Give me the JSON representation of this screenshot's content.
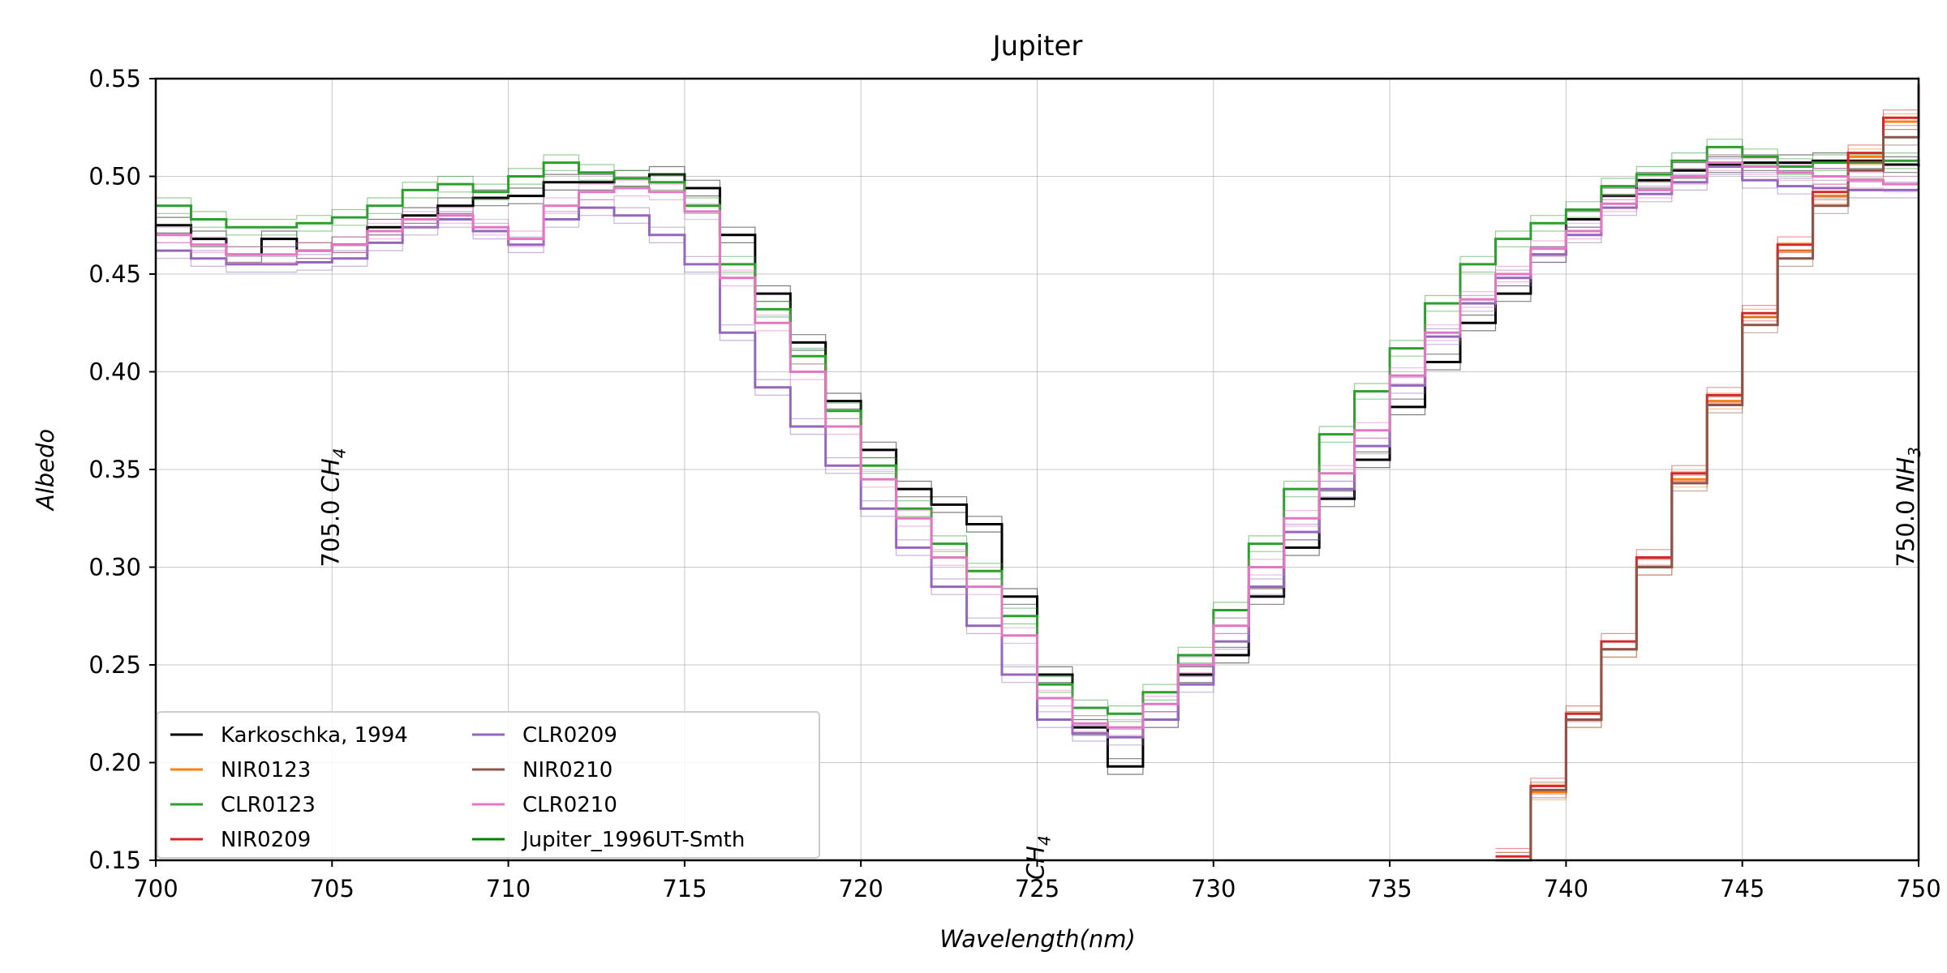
{
  "chart_data": {
    "type": "line",
    "title": "Jupiter",
    "xlabel_parts": [
      "Wavelength",
      "(nm)"
    ],
    "ylabel": "Albedo",
    "xlim": [
      700,
      750
    ],
    "ylim": [
      0.15,
      0.55
    ],
    "xticks": [
      "700",
      "705",
      "710",
      "715",
      "720",
      "725",
      "730",
      "735",
      "740",
      "745",
      "750"
    ],
    "yticks": [
      "0.15",
      "0.20",
      "0.25",
      "0.30",
      "0.35",
      "0.40",
      "0.45",
      "0.50",
      "0.55"
    ],
    "grid": true,
    "legend_position": "lower-left",
    "legend_columns": 2,
    "annotations": [
      {
        "x": 705.0,
        "y": 0.3,
        "value": "705.0",
        "species": "CH",
        "subscript": "4",
        "rotation": "vertical"
      },
      {
        "x": 750.0,
        "y": 0.3,
        "value": "750.0",
        "species": "NH",
        "subscript": "3",
        "rotation": "vertical"
      },
      {
        "x": 725.0,
        "y": 0.14,
        "value": "",
        "species": "CH",
        "subscript": "4",
        "rotation": "vertical"
      }
    ],
    "series": [
      {
        "name": "Karkoschka, 1994",
        "color": "#000000",
        "x": [
          700,
          701,
          702,
          703,
          704,
          705,
          706,
          707,
          708,
          709,
          710,
          711,
          712,
          713,
          714,
          715,
          716,
          717,
          718,
          719,
          720,
          721,
          722,
          723,
          724,
          725,
          726,
          727,
          728,
          729,
          730,
          731,
          732,
          733,
          734,
          735,
          736,
          737,
          738,
          739,
          740,
          741,
          742,
          743,
          744,
          745,
          746,
          747,
          748,
          749,
          750
        ],
        "y": [
          0.475,
          0.468,
          0.46,
          0.468,
          0.462,
          0.465,
          0.474,
          0.48,
          0.485,
          0.489,
          0.49,
          0.497,
          0.497,
          0.499,
          0.501,
          0.494,
          0.47,
          0.44,
          0.415,
          0.385,
          0.36,
          0.34,
          0.332,
          0.322,
          0.285,
          0.245,
          0.218,
          0.198,
          0.222,
          0.245,
          0.255,
          0.285,
          0.31,
          0.335,
          0.355,
          0.382,
          0.405,
          0.425,
          0.44,
          0.46,
          0.478,
          0.49,
          0.498,
          0.503,
          0.506,
          0.507,
          0.507,
          0.508,
          0.508,
          0.506,
          0.505
        ]
      },
      {
        "name": "NIR0123",
        "color": "#ff7f0e",
        "x": [
          738,
          739,
          740,
          741,
          742,
          743,
          744,
          745,
          746,
          747,
          748,
          749,
          750
        ],
        "y": [
          0.15,
          0.185,
          0.222,
          0.258,
          0.3,
          0.345,
          0.385,
          0.428,
          0.462,
          0.49,
          0.51,
          0.528,
          0.545
        ]
      },
      {
        "name": "CLR0123",
        "color": "#2ca02c",
        "x": [
          700,
          701,
          702,
          703,
          704,
          705,
          706,
          707,
          708,
          709,
          710,
          711,
          712,
          713,
          714,
          715,
          716,
          717,
          718,
          719,
          720,
          721,
          722,
          723,
          724,
          725,
          726,
          727,
          728,
          729,
          730,
          731,
          732,
          733,
          734,
          735,
          736,
          737,
          738,
          739,
          740,
          741,
          742,
          743,
          744,
          745,
          746,
          747,
          748,
          749,
          750
        ],
        "y": [
          0.485,
          0.478,
          0.474,
          0.474,
          0.476,
          0.479,
          0.485,
          0.493,
          0.496,
          0.492,
          0.5,
          0.507,
          0.502,
          0.499,
          0.497,
          0.485,
          0.455,
          0.432,
          0.408,
          0.38,
          0.352,
          0.33,
          0.312,
          0.298,
          0.275,
          0.24,
          0.228,
          0.225,
          0.236,
          0.255,
          0.278,
          0.312,
          0.34,
          0.368,
          0.39,
          0.412,
          0.435,
          0.455,
          0.468,
          0.476,
          0.483,
          0.495,
          0.501,
          0.508,
          0.515,
          0.51,
          0.505,
          0.507,
          0.507,
          0.508,
          0.509
        ]
      },
      {
        "name": "NIR0209",
        "color": "#d62728",
        "x": [
          738,
          739,
          740,
          741,
          742,
          743,
          744,
          745,
          746,
          747,
          748,
          749,
          750
        ],
        "y": [
          0.152,
          0.188,
          0.225,
          0.262,
          0.305,
          0.348,
          0.388,
          0.43,
          0.465,
          0.492,
          0.512,
          0.53,
          0.547
        ]
      },
      {
        "name": "CLR0209",
        "color": "#9467bd",
        "x": [
          700,
          701,
          702,
          703,
          704,
          705,
          706,
          707,
          708,
          709,
          710,
          711,
          712,
          713,
          714,
          715,
          716,
          717,
          718,
          719,
          720,
          721,
          722,
          723,
          724,
          725,
          726,
          727,
          728,
          729,
          730,
          731,
          732,
          733,
          734,
          735,
          736,
          737,
          738,
          739,
          740,
          741,
          742,
          743,
          744,
          745,
          746,
          747,
          748,
          749,
          750
        ],
        "y": [
          0.462,
          0.458,
          0.455,
          0.455,
          0.456,
          0.458,
          0.466,
          0.474,
          0.478,
          0.472,
          0.465,
          0.478,
          0.484,
          0.48,
          0.47,
          0.455,
          0.42,
          0.392,
          0.372,
          0.352,
          0.33,
          0.31,
          0.29,
          0.27,
          0.245,
          0.222,
          0.215,
          0.213,
          0.222,
          0.24,
          0.262,
          0.29,
          0.318,
          0.34,
          0.362,
          0.393,
          0.418,
          0.435,
          0.448,
          0.46,
          0.47,
          0.484,
          0.491,
          0.497,
          0.505,
          0.498,
          0.495,
          0.494,
          0.493,
          0.493,
          0.493
        ]
      },
      {
        "name": "NIR0210",
        "color": "#8c564b",
        "x": [
          738,
          739,
          740,
          741,
          742,
          743,
          744,
          745,
          746,
          747,
          748,
          749,
          750
        ],
        "y": [
          0.15,
          0.186,
          0.222,
          0.258,
          0.3,
          0.343,
          0.383,
          0.424,
          0.458,
          0.485,
          0.503,
          0.52,
          0.537
        ]
      },
      {
        "name": "CLR0210",
        "color": "#e377c2",
        "x": [
          700,
          701,
          702,
          703,
          704,
          705,
          706,
          707,
          708,
          709,
          710,
          711,
          712,
          713,
          714,
          715,
          716,
          717,
          718,
          719,
          720,
          721,
          722,
          723,
          724,
          725,
          726,
          727,
          728,
          729,
          730,
          731,
          732,
          733,
          734,
          735,
          736,
          737,
          738,
          739,
          740,
          741,
          742,
          743,
          744,
          745,
          746,
          747,
          748,
          749,
          750
        ],
        "y": [
          0.47,
          0.465,
          0.46,
          0.46,
          0.462,
          0.465,
          0.472,
          0.478,
          0.48,
          0.474,
          0.468,
          0.485,
          0.492,
          0.494,
          0.492,
          0.482,
          0.448,
          0.425,
          0.4,
          0.372,
          0.345,
          0.325,
          0.305,
          0.29,
          0.265,
          0.233,
          0.22,
          0.218,
          0.23,
          0.25,
          0.27,
          0.3,
          0.325,
          0.348,
          0.37,
          0.398,
          0.42,
          0.437,
          0.45,
          0.463,
          0.472,
          0.486,
          0.493,
          0.5,
          0.507,
          0.505,
          0.502,
          0.5,
          0.498,
          0.496,
          0.496
        ]
      },
      {
        "name": "Jupiter_1996UT-Smth",
        "color": "#008000",
        "x": [],
        "y": []
      }
    ]
  }
}
